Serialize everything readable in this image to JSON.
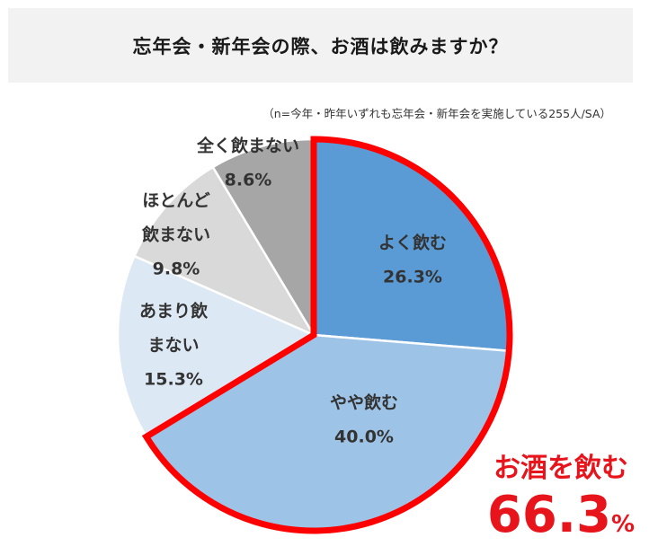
{
  "title": "忘年会・新年会の際、お酒は飲みますか？",
  "note": "（n=今年・昨年いずれも忘年会・新年会を実施している255人/SA）",
  "callout": {
    "label": "お酒を飲む",
    "value": "66.3",
    "unit": "%"
  },
  "chart_data": {
    "type": "pie",
    "title": "忘年会・新年会の際、お酒は飲みますか？",
    "start": "12 o'clock, clockwise",
    "slices": [
      {
        "label": [
          "よく飲む"
        ],
        "value": 26.3,
        "value_label": "26.3%",
        "color": "#5b9bd5"
      },
      {
        "label": [
          "やや飲む"
        ],
        "value": 40.0,
        "value_label": "40.0%",
        "color": "#9dc3e6"
      },
      {
        "label": [
          "あまり飲",
          "まない"
        ],
        "value": 15.3,
        "value_label": "15.3%",
        "color": "#dde8f5"
      },
      {
        "label": [
          "ほとんど",
          "飲まない"
        ],
        "value": 9.8,
        "value_label": "9.8%",
        "color": "#d9d9d9"
      },
      {
        "label": [
          "全く飲まない"
        ],
        "value": 8.6,
        "value_label": "8.6%",
        "color": "#a6a6a6"
      }
    ],
    "highlight": {
      "slices": [
        "よく飲む",
        "やや飲む"
      ],
      "total": 66.3,
      "outline_color": "#ff0000"
    },
    "legend": "none"
  }
}
